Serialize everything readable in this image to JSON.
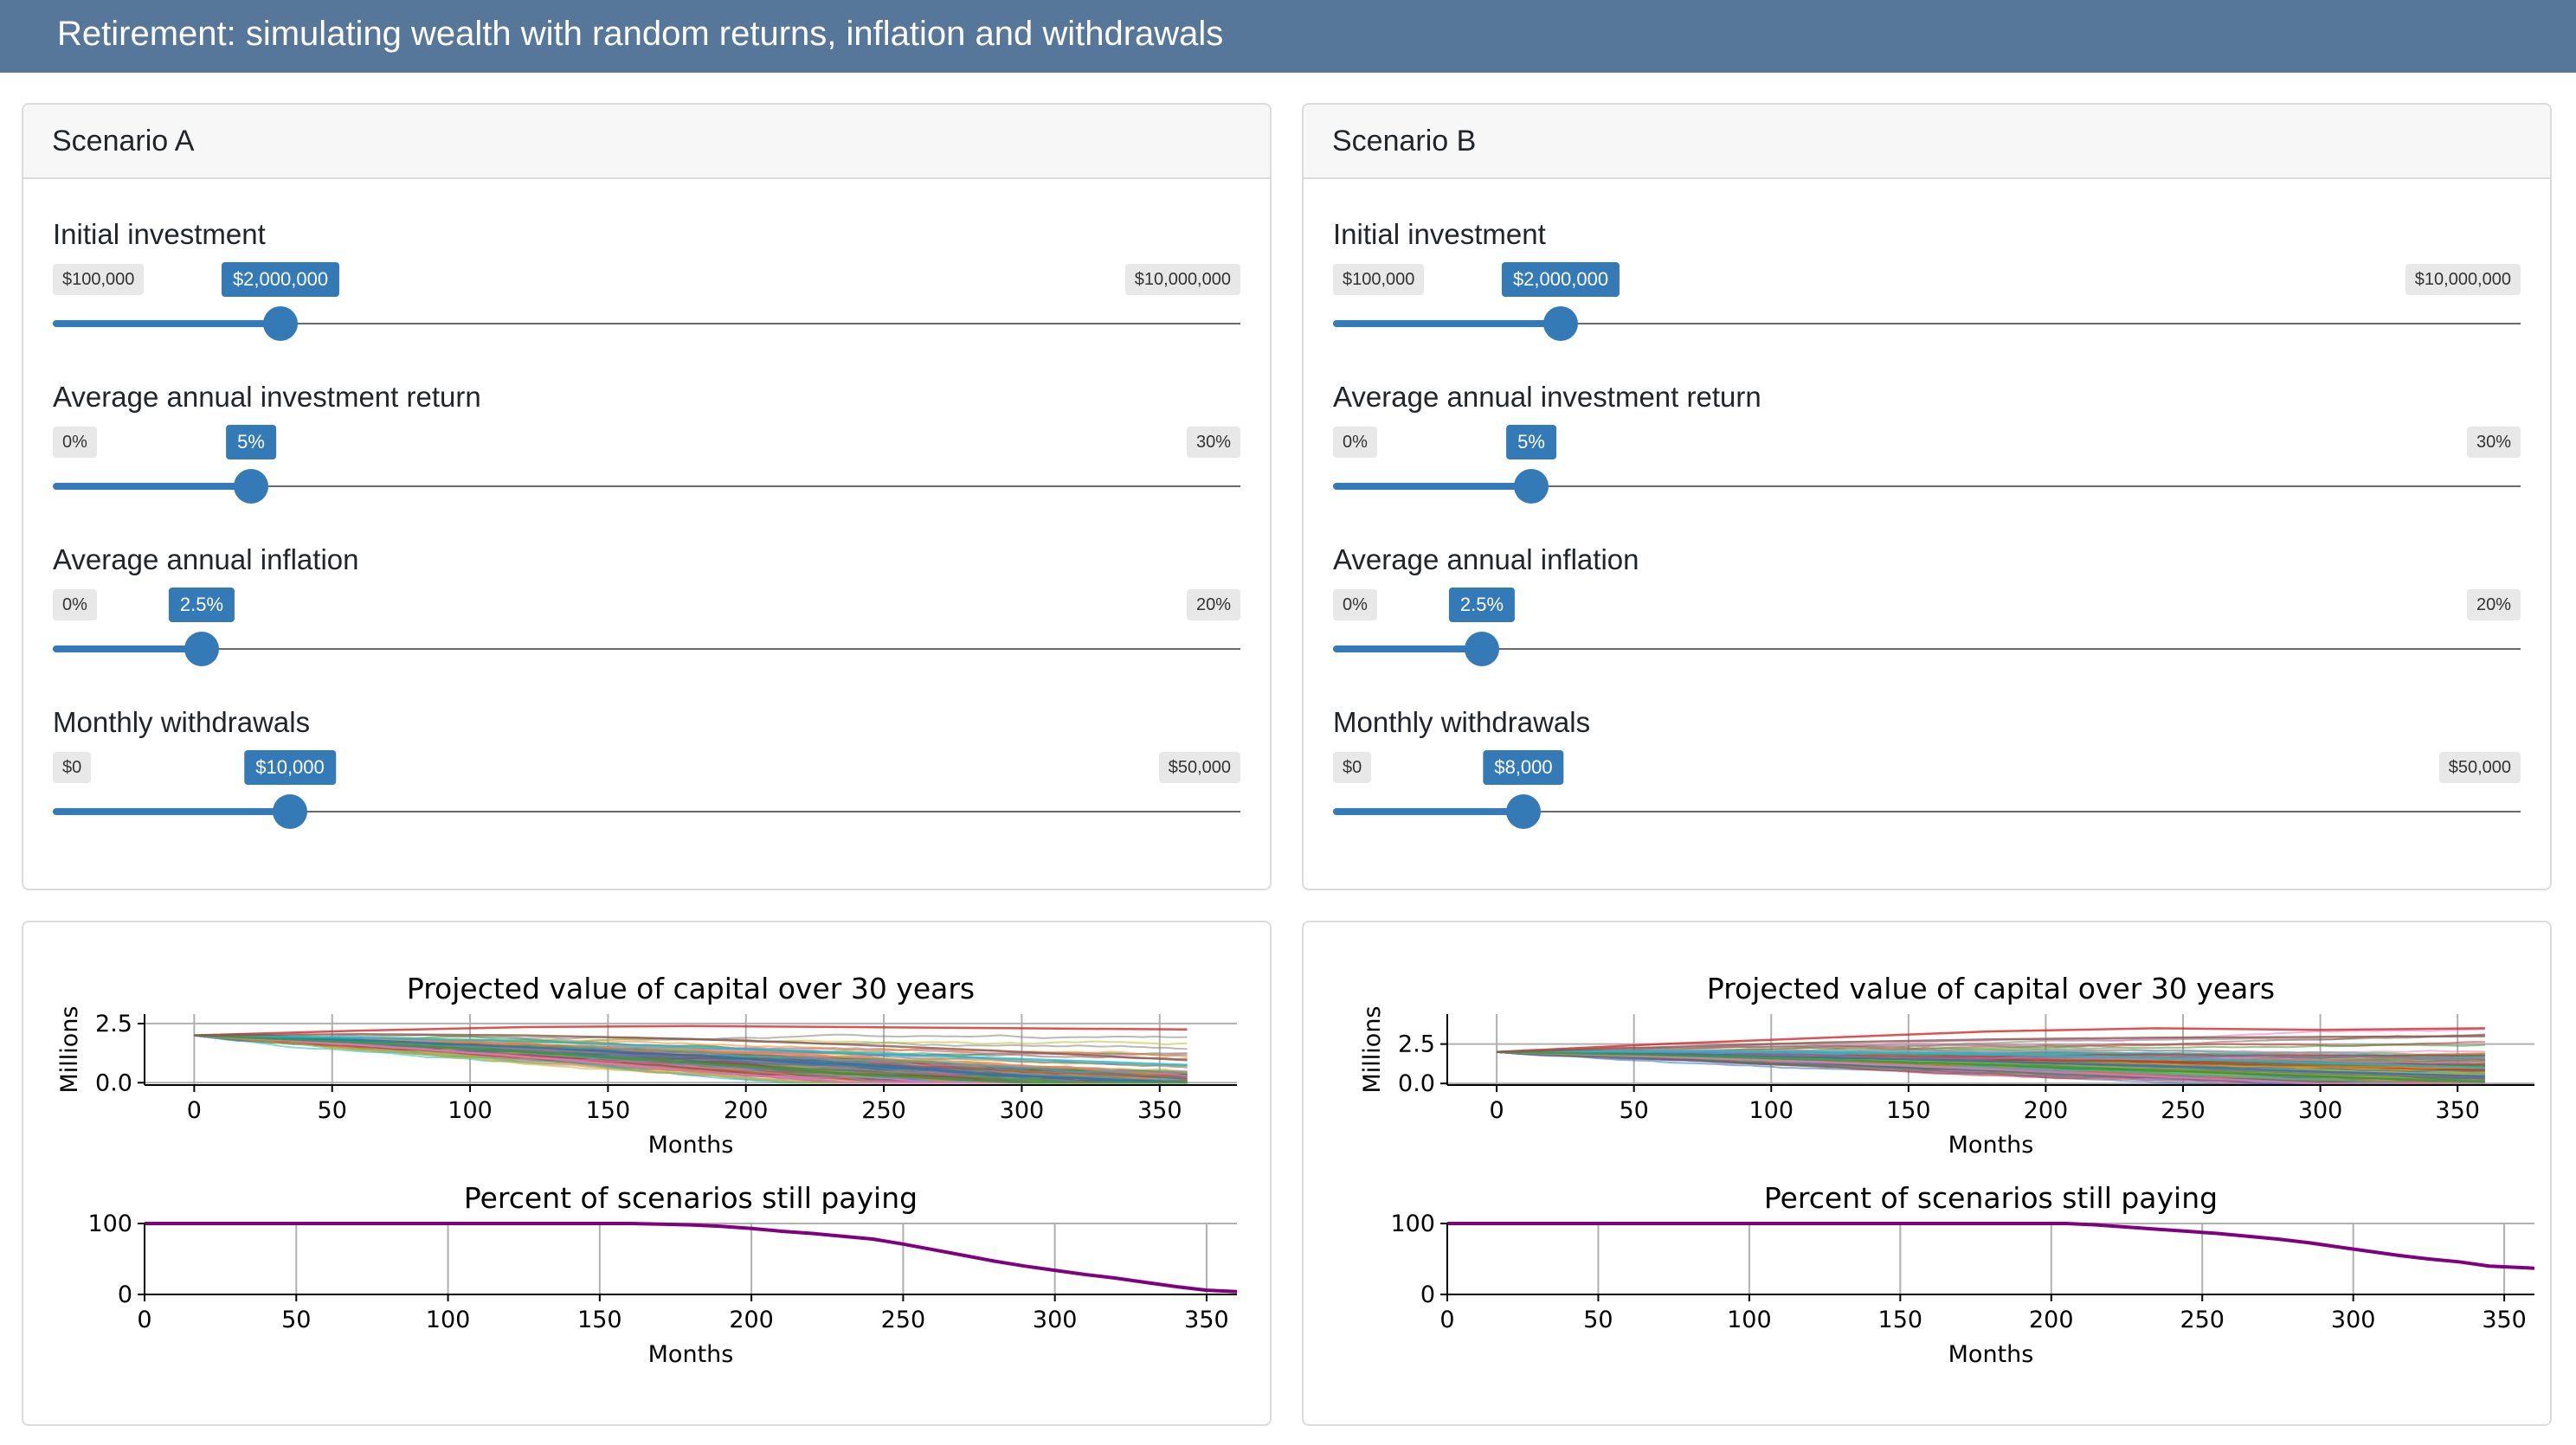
{
  "app": {
    "title": "Retirement: simulating wealth with random returns, inflation and withdrawals"
  },
  "scenarios": [
    {
      "title": "Scenario A",
      "sliders": [
        {
          "label": "Initial investment",
          "min": 100000,
          "max": 10000000,
          "value": 2000000,
          "min_label": "$100,000",
          "max_label": "$10,000,000",
          "value_label": "$2,000,000"
        },
        {
          "label": "Average annual investment return",
          "min": 0,
          "max": 30,
          "value": 5,
          "min_label": "0%",
          "max_label": "30%",
          "value_label": "5%"
        },
        {
          "label": "Average annual inflation",
          "min": 0,
          "max": 20,
          "value": 2.5,
          "min_label": "0%",
          "max_label": "20%",
          "value_label": "2.5%"
        },
        {
          "label": "Monthly withdrawals",
          "min": 0,
          "max": 50000,
          "value": 10000,
          "min_label": "$0",
          "max_label": "$50,000",
          "value_label": "$10,000"
        }
      ]
    },
    {
      "title": "Scenario B",
      "sliders": [
        {
          "label": "Initial investment",
          "min": 100000,
          "max": 10000000,
          "value": 2000000,
          "min_label": "$100,000",
          "max_label": "$10,000,000",
          "value_label": "$2,000,000"
        },
        {
          "label": "Average annual investment return",
          "min": 0,
          "max": 30,
          "value": 5,
          "min_label": "0%",
          "max_label": "30%",
          "value_label": "5%"
        },
        {
          "label": "Average annual inflation",
          "min": 0,
          "max": 20,
          "value": 2.5,
          "min_label": "0%",
          "max_label": "20%",
          "value_label": "2.5%"
        },
        {
          "label": "Monthly withdrawals",
          "min": 0,
          "max": 50000,
          "value": 8000,
          "min_label": "$0",
          "max_label": "$50,000",
          "value_label": "$8,000"
        }
      ]
    }
  ],
  "colors": {
    "accent": "#337ab7",
    "navbar": "#56769a",
    "paying_line": "#800080"
  },
  "chart_data": [
    {
      "scenario": "Scenario A",
      "type": "line",
      "title": "Projected value of capital over 30 years",
      "xlabel": "Months",
      "ylabel": "Millions",
      "xlim": [
        -18,
        378
      ],
      "ylim": [
        -0.1,
        2.9
      ],
      "xticks": [
        0,
        50,
        100,
        150,
        200,
        250,
        300,
        350
      ],
      "yticks": [
        0.0,
        2.5
      ],
      "ytick_labels": [
        "0.0",
        "2.5"
      ],
      "grid": true,
      "note": "many simulated paths from 2.0 at month 0, spreading down to 0 between ~month 150 and 360, a few ending near 2.2",
      "series_summary": [
        {
          "x": [
            0,
            60,
            120,
            180,
            240,
            300,
            360
          ],
          "values": [
            2.0,
            1.8,
            1.5,
            1.15,
            0.75,
            0.3,
            0.0
          ]
        },
        {
          "x": [
            0,
            60,
            120,
            180,
            240,
            300,
            360
          ],
          "values": [
            2.0,
            2.2,
            2.35,
            2.4,
            2.35,
            2.3,
            2.25
          ]
        },
        {
          "x": [
            0,
            60,
            120,
            180,
            240,
            300,
            360
          ],
          "values": [
            2.0,
            1.6,
            1.1,
            0.5,
            0.0,
            0.0,
            0.0
          ]
        },
        {
          "x": [
            0,
            60,
            120,
            180,
            240,
            300,
            360
          ],
          "values": [
            2.0,
            1.9,
            1.75,
            1.5,
            1.25,
            1.0,
            0.75
          ]
        },
        {
          "x": [
            0,
            60,
            120,
            180,
            240,
            300,
            360
          ],
          "values": [
            2.0,
            1.7,
            1.3,
            0.85,
            0.35,
            0.0,
            0.0
          ]
        },
        {
          "x": [
            0,
            60,
            120,
            180,
            240,
            300,
            360
          ],
          "values": [
            2.0,
            2.05,
            2.0,
            1.85,
            1.6,
            1.3,
            0.95
          ]
        }
      ]
    },
    {
      "scenario": "Scenario A",
      "type": "line",
      "title": "Percent of scenarios still paying",
      "xlabel": "Months",
      "ylabel": "",
      "xlim": [
        0,
        360
      ],
      "ylim": [
        0,
        100
      ],
      "xticks": [
        0,
        50,
        100,
        150,
        200,
        250,
        300,
        350
      ],
      "yticks": [
        0,
        100
      ],
      "grid": true,
      "x": [
        0,
        160,
        170,
        180,
        190,
        200,
        210,
        220,
        230,
        240,
        250,
        260,
        270,
        280,
        290,
        300,
        310,
        320,
        330,
        340,
        350,
        360
      ],
      "values": [
        100,
        100,
        99,
        98,
        96,
        93,
        89,
        86,
        82,
        78,
        71,
        63,
        55,
        47,
        40,
        34,
        28,
        23,
        17,
        11,
        6,
        4
      ]
    },
    {
      "scenario": "Scenario B",
      "type": "line",
      "title": "Projected value of capital over 30 years",
      "xlabel": "Months",
      "ylabel": "Millions",
      "xlim": [
        -18,
        378
      ],
      "ylim": [
        -0.1,
        4.4
      ],
      "xticks": [
        0,
        50,
        100,
        150,
        200,
        250,
        300,
        350
      ],
      "yticks": [
        0.0,
        2.5
      ],
      "ytick_labels": [
        "0.0",
        "2.5"
      ],
      "grid": true,
      "note": "many simulated paths from 2.0 at month 0, most ending between 0 and 1.2, a few rising to about 3.5",
      "series_summary": [
        {
          "x": [
            0,
            60,
            120,
            180,
            240,
            300,
            360
          ],
          "values": [
            2.0,
            1.85,
            1.65,
            1.4,
            1.1,
            0.75,
            0.45
          ]
        },
        {
          "x": [
            0,
            60,
            120,
            180,
            240,
            300,
            360
          ],
          "values": [
            2.0,
            2.5,
            2.9,
            3.3,
            3.5,
            3.4,
            3.5
          ]
        },
        {
          "x": [
            0,
            60,
            120,
            180,
            240,
            300,
            360
          ],
          "values": [
            2.0,
            1.7,
            1.35,
            0.9,
            0.45,
            0.0,
            0.0
          ]
        },
        {
          "x": [
            0,
            60,
            120,
            180,
            240,
            300,
            360
          ],
          "values": [
            2.0,
            2.05,
            2.0,
            1.85,
            1.6,
            1.3,
            1.0
          ]
        },
        {
          "x": [
            0,
            60,
            120,
            180,
            240,
            300,
            360
          ],
          "values": [
            2.0,
            1.8,
            1.5,
            1.2,
            0.85,
            0.45,
            0.1
          ]
        },
        {
          "x": [
            0,
            60,
            120,
            180,
            240,
            300,
            360
          ],
          "values": [
            2.0,
            2.3,
            2.6,
            2.8,
            2.9,
            2.95,
            3.0
          ]
        }
      ]
    },
    {
      "scenario": "Scenario B",
      "type": "line",
      "title": "Percent of scenarios still paying",
      "xlabel": "Months",
      "ylabel": "",
      "xlim": [
        0,
        360
      ],
      "ylim": [
        0,
        100
      ],
      "xticks": [
        0,
        50,
        100,
        150,
        200,
        250,
        300,
        350
      ],
      "yticks": [
        0,
        100
      ],
      "grid": true,
      "x": [
        0,
        205,
        215,
        225,
        235,
        245,
        255,
        265,
        275,
        285,
        295,
        305,
        315,
        325,
        335,
        345,
        360
      ],
      "values": [
        100,
        100,
        98,
        95,
        92,
        89,
        86,
        82,
        78,
        73,
        67,
        61,
        55,
        50,
        46,
        40,
        37
      ]
    }
  ]
}
